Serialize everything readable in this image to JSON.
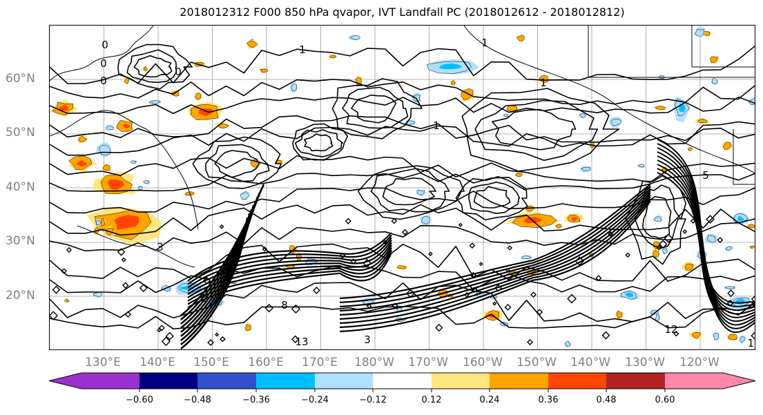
{
  "title": "2018012312 F000 850 hPa qvapor, IVT Landfall PC (2018012612 - 2018012812)",
  "map": {
    "lat_labels": [
      "60°N",
      "50°N",
      "40°N",
      "30°N",
      "20°N"
    ],
    "lon_labels": [
      "130°E",
      "140°E",
      "150°E",
      "160°E",
      "170°E",
      "180°W",
      "170°W",
      "160°W",
      "150°W",
      "140°W",
      "130°W",
      "120°W"
    ],
    "contour_labels": [
      "0",
      "0",
      "0",
      "0",
      "1",
      "1",
      "1",
      "1",
      "3",
      "5",
      "8",
      "12",
      "12",
      "13",
      "3",
      "5"
    ],
    "colors": {
      "contour": "#000000",
      "coast": "#000000",
      "grid": "#9a9a9a"
    }
  },
  "colorbar": {
    "tick_labels": [
      "−0.60",
      "−0.48",
      "−0.36",
      "−0.24",
      "−0.12",
      "0.12",
      "0.24",
      "0.36",
      "0.48",
      "0.60"
    ],
    "colors": [
      "#9932CC",
      "#000080",
      "#3050CC",
      "#00BFFF",
      "#B0E0FF",
      "#FFFFFF",
      "#FFE680",
      "#FFA500",
      "#FF4500",
      "#B22222",
      "#FF88AA"
    ]
  }
}
